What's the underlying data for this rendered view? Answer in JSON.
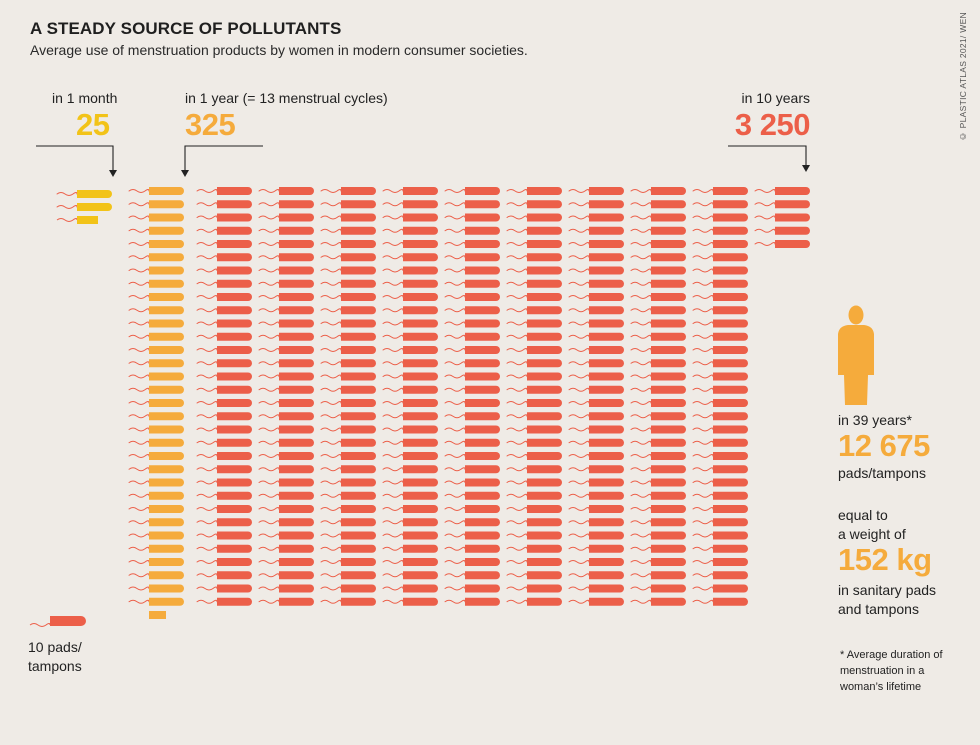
{
  "header": {
    "title": "A STEADY SOURCE OF POLLUTANTS",
    "subtitle": "Average use of menstruation products by women in modern consumer societies.",
    "credit": "© PLASTIC ATLAS 2021/ WEN"
  },
  "colors": {
    "month": "#f2c318",
    "year": "#f5ab3c",
    "decade": "#ec5f49",
    "string": "#ec5f49",
    "background": "#efebe6"
  },
  "callouts": {
    "month_label": "in 1 month",
    "month_value": "25",
    "year_label": "in 1 year (= 13 menstrual cycles)",
    "year_value": "325",
    "decade_label": "in 10 years",
    "decade_value": "3 250"
  },
  "side": {
    "lifetime_label": "in 39 years*",
    "lifetime_value": "12 675",
    "lifetime_unit": "pads/tampons",
    "weight_intro_1": "equal to",
    "weight_intro_2": "a weight of",
    "weight_value": "152 kg",
    "weight_unit_1": "in sanitary pads",
    "weight_unit_2": "and tampons",
    "footnote": "* Average duration of menstruation in a woman’s lifetime"
  },
  "legend": {
    "label_1": "10 pads/",
    "label_2": "tampons"
  },
  "chart_data": {
    "type": "unit-pictogram",
    "unit": "10 pads/tampons",
    "series": [
      {
        "name": "in 1 month",
        "value": 25
      },
      {
        "name": "in 1 year (= 13 menstrual cycles)",
        "value": 325
      },
      {
        "name": "in 10 years",
        "value": 3250
      },
      {
        "name": "in 39 years*",
        "value": 12675
      }
    ],
    "weight_kg": 152
  }
}
